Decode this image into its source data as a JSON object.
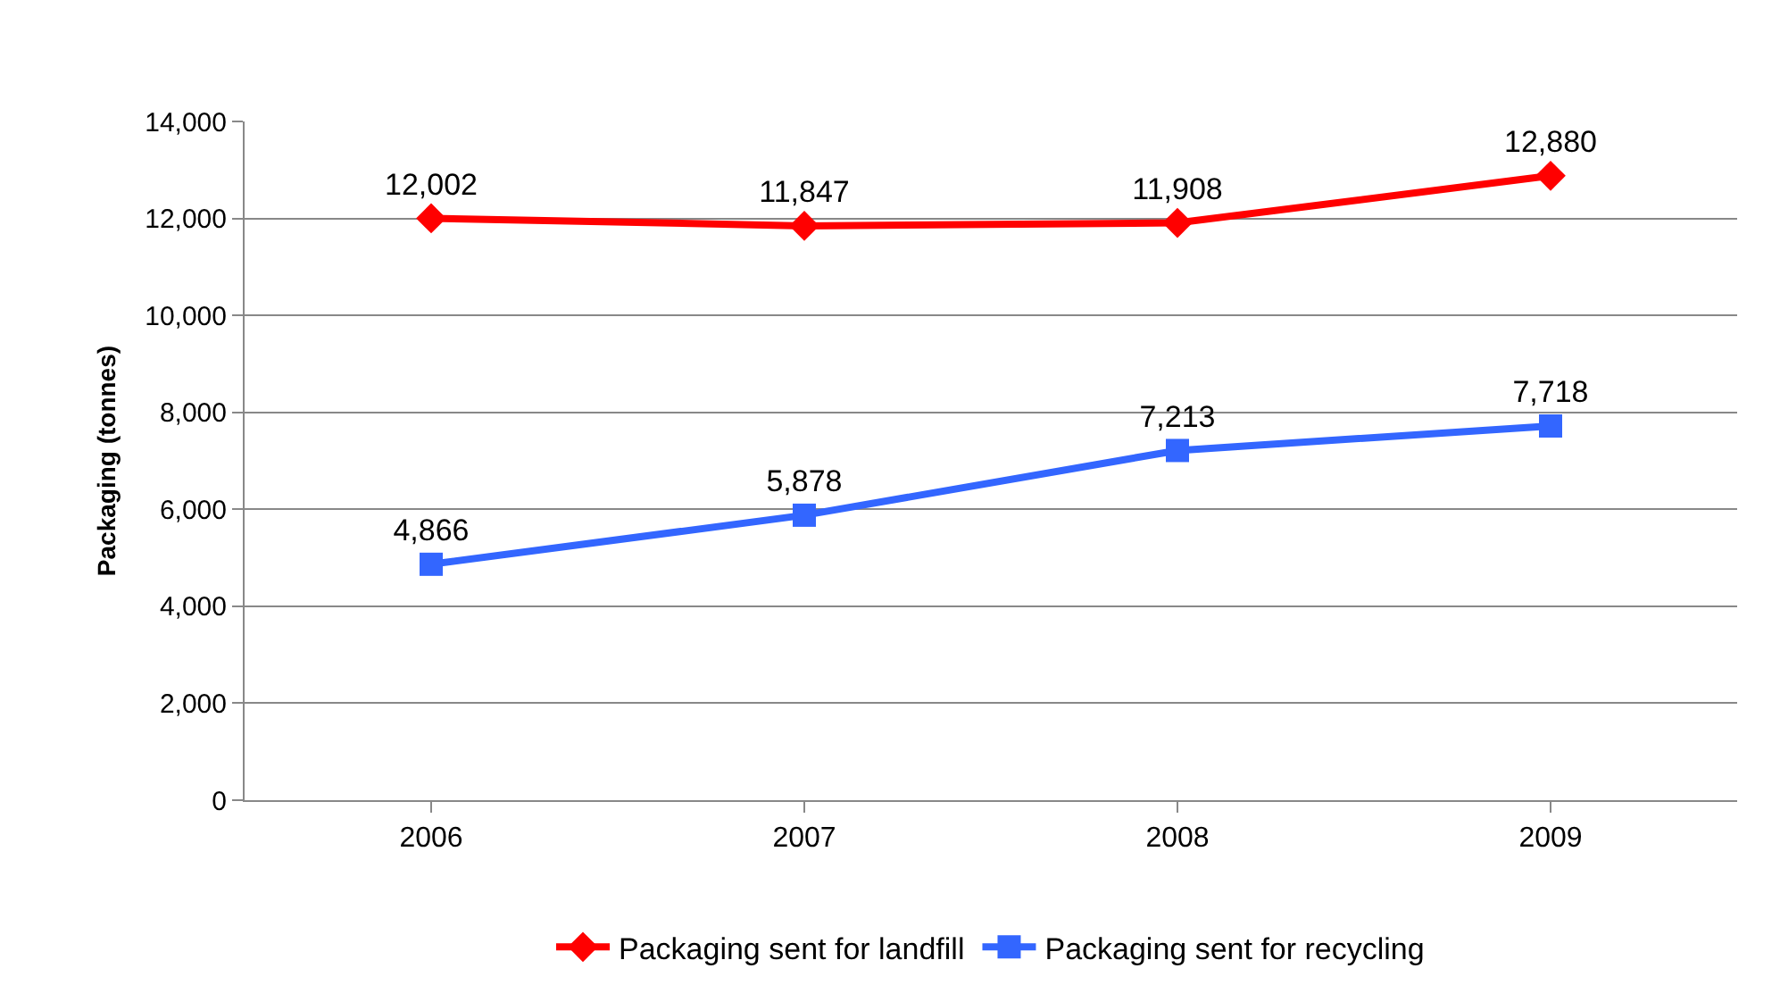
{
  "chart_data": {
    "type": "line",
    "ylabel": "Packaging (tonnes)",
    "categories": [
      "2006",
      "2007",
      "2008",
      "2009"
    ],
    "series": [
      {
        "name": "Packaging sent for landfill",
        "color": "#ff0000",
        "marker": "diamond",
        "values": [
          12002,
          11847,
          11908,
          12880
        ],
        "value_labels": [
          "12,002",
          "11,847",
          "11,908",
          "12,880"
        ]
      },
      {
        "name": "Packaging sent for recycling",
        "color": "#3366ff",
        "marker": "square",
        "values": [
          4866,
          5878,
          7213,
          7718
        ],
        "value_labels": [
          "4,866",
          "5,878",
          "7,213",
          "7,718"
        ]
      }
    ],
    "ylim": [
      0,
      14000
    ],
    "yticks": [
      {
        "value": 0,
        "label": "0"
      },
      {
        "value": 2000,
        "label": "2,000"
      },
      {
        "value": 4000,
        "label": "4,000"
      },
      {
        "value": 6000,
        "label": "6,000"
      },
      {
        "value": 8000,
        "label": "8,000"
      },
      {
        "value": 10000,
        "label": "10,000"
      },
      {
        "value": 12000,
        "label": "12,000"
      },
      {
        "value": 14000,
        "label": "14,000"
      }
    ],
    "grid": "y",
    "legend": "bottom",
    "line_style": "solid"
  }
}
